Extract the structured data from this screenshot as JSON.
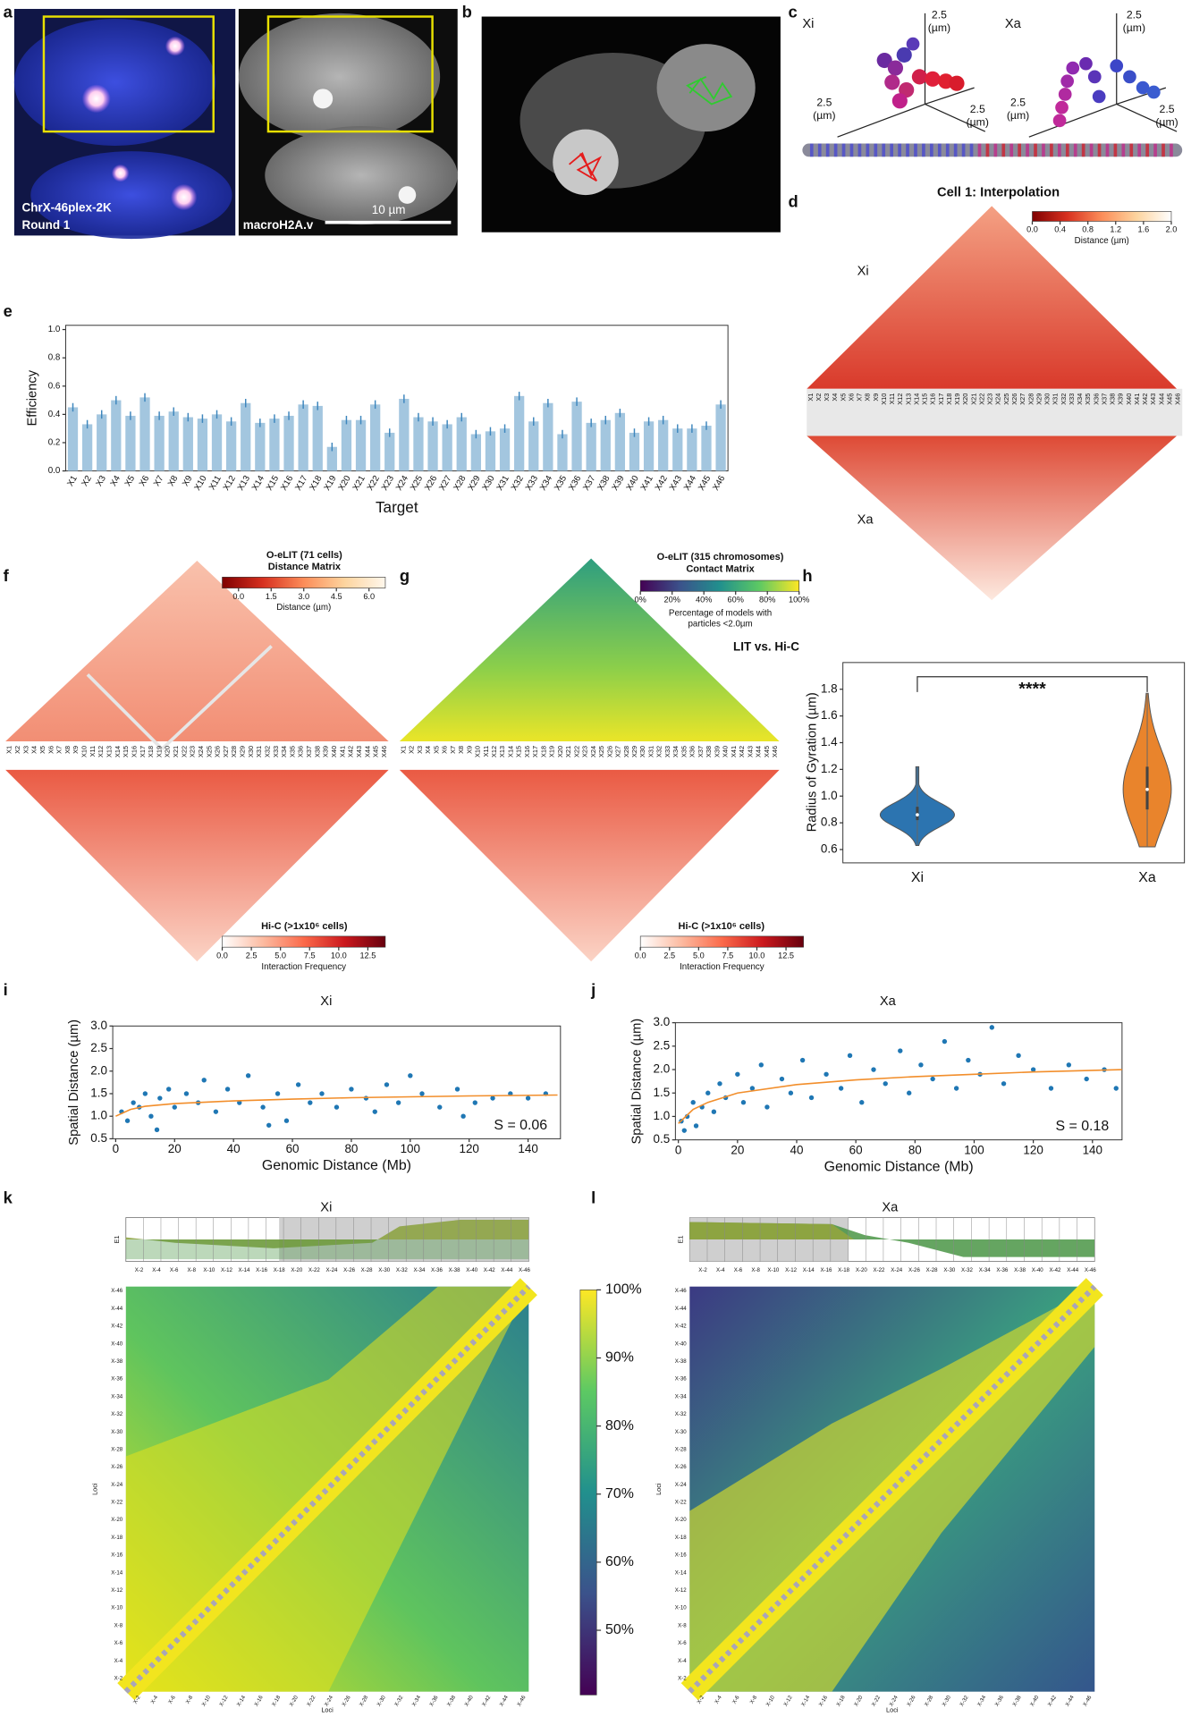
{
  "figure": {
    "a": {
      "letter": "a",
      "stain": "ChrX-46plex-2K",
      "round": "Round 1",
      "channel": "macroH2A.v",
      "scale_bar": "10 µm"
    },
    "b": {
      "letter": "b"
    },
    "c": {
      "letter": "c",
      "xi": "Xi",
      "xa": "Xa",
      "axis_value": "2.5",
      "axis_unit": "(µm)"
    },
    "d": {
      "letter": "d",
      "title": "Cell 1: Interpolation",
      "upper": "Xi",
      "lower": "Xa",
      "colorbar": {
        "lim": [
          0,
          2
        ],
        "ticks": [
          {
            "value": 0,
            "label": "0.0"
          },
          0.4,
          0.8,
          1.2,
          1.6,
          {
            "value": 2,
            "label": "2.0"
          }
        ],
        "colors": [
          "#7f0000",
          "#d7301f",
          "#fc8d59",
          "#fdd49e",
          "#ffffff"
        ],
        "label": "Distance (µm)"
      }
    },
    "e": {
      "letter": "e"
    },
    "f": {
      "letter": "f",
      "title_1": "O-eLIT (71 cells)",
      "title_2": "Distance Matrix",
      "colorbar": {
        "lim": [
          -0.75,
          6.75
        ],
        "ticks": [
          {
            "value": 0,
            "label": "0.0"
          },
          1.5,
          {
            "value": 3,
            "label": "3.0"
          },
          4.5,
          {
            "value": 6,
            "label": "6.0"
          }
        ],
        "colors": [
          "#7f0000",
          "#d7301f",
          "#fc8d59",
          "#fdd49e",
          "#fff7ec"
        ],
        "label": "Distance (µm)"
      }
    },
    "g": {
      "letter": "g",
      "title_1": "O-eLIT (315 chromosomes)",
      "title_2": "Contact Matrix",
      "caption_1": "Percentage of models with",
      "caption_2": "particles <2.0µm",
      "compare": "LIT vs. Hi-C",
      "colorbar": {
        "lim": [
          0,
          100
        ],
        "ticks": [
          {
            "value": 0,
            "label": "0%"
          },
          {
            "value": 20,
            "label": "20%"
          },
          {
            "value": 40,
            "label": "40%"
          },
          {
            "value": 60,
            "label": "60%"
          },
          {
            "value": 80,
            "label": "80%"
          },
          {
            "value": 100,
            "label": "100%"
          }
        ],
        "colors": [
          "#440154",
          "#3b528b",
          "#21908d",
          "#5dc963",
          "#fde725"
        ]
      }
    },
    "hic": {
      "title": "Hi-C (>1x10⁶ cells)",
      "colorbar": {
        "lim": [
          0,
          14
        ],
        "ticks": [
          {
            "value": 0,
            "label": "0.0"
          },
          2.5,
          {
            "value": 5,
            "label": "5.0"
          },
          7.5,
          {
            "value": 10,
            "label": "10.0"
          },
          12.5
        ],
        "colors": [
          "#ffffff",
          "#fcbba1",
          "#fb6a4a",
          "#cb181d",
          "#67000d"
        ],
        "label": "Interaction Frequency"
      }
    },
    "h": {
      "letter": "h"
    },
    "i": {
      "letter": "i"
    },
    "j": {
      "letter": "j"
    },
    "k": {
      "letter": "k",
      "title": "Xi"
    },
    "l": {
      "letter": "l",
      "title": "Xa"
    },
    "heatmap": {
      "track_label": "E1",
      "axis_label": "Loci",
      "loci": [
        "X-2",
        "X-4",
        "X-6",
        "X-8",
        "X-10",
        "X-12",
        "X-14",
        "X-16",
        "X-18",
        "X-20",
        "X-22",
        "X-24",
        "X-26",
        "X-28",
        "X-30",
        "X-32",
        "X-34",
        "X-36",
        "X-38",
        "X-40",
        "X-42",
        "X-44",
        "X-46"
      ],
      "colorbar": {
        "lim": [
          40.5,
          100
        ],
        "ticks": [
          {
            "value": 50,
            "label": "50%"
          },
          {
            "value": 60,
            "label": "60%"
          },
          {
            "value": 70,
            "label": "70%"
          },
          {
            "value": 80,
            "label": "80%"
          },
          {
            "value": 90,
            "label": "90%"
          },
          {
            "value": 100,
            "label": "100%"
          }
        ],
        "colors": [
          "#440154",
          "#3b528b",
          "#21908d",
          "#5dc963",
          "#fde725"
        ]
      }
    }
  },
  "chart_data": [
    {
      "type": "bar",
      "ylabel": "Efficiency",
      "xlabel": "Target",
      "color": "#a3c6df",
      "error_color": "#3d86bd",
      "categories": [
        "X1",
        "X2",
        "X3",
        "X4",
        "X5",
        "X6",
        "X7",
        "X8",
        "X9",
        "X10",
        "X11",
        "X12",
        "X13",
        "X14",
        "X15",
        "X16",
        "X17",
        "X18",
        "X19",
        "X20",
        "X21",
        "X22",
        "X23",
        "X24",
        "X25",
        "X26",
        "X27",
        "X28",
        "X29",
        "X30",
        "X31",
        "X32",
        "X33",
        "X34",
        "X35",
        "X36",
        "X37",
        "X38",
        "X39",
        "X40",
        "X41",
        "X42",
        "X43",
        "X44",
        "X45",
        "X46"
      ],
      "values": [
        0.45,
        0.33,
        0.4,
        0.5,
        0.39,
        0.52,
        0.39,
        0.42,
        0.38,
        0.37,
        0.4,
        0.35,
        0.48,
        0.34,
        0.37,
        0.39,
        0.47,
        0.46,
        0.17,
        0.36,
        0.36,
        0.47,
        0.27,
        0.51,
        0.38,
        0.35,
        0.33,
        0.38,
        0.26,
        0.28,
        0.3,
        0.53,
        0.35,
        0.48,
        0.26,
        0.49,
        0.34,
        0.36,
        0.41,
        0.27,
        0.35,
        0.36,
        0.3,
        0.3,
        0.32,
        0.47
      ],
      "errors": [
        0.03,
        0.03,
        0.03,
        0.03,
        0.03,
        0.03,
        0.03,
        0.03,
        0.03,
        0.03,
        0.03,
        0.03,
        0.03,
        0.03,
        0.03,
        0.03,
        0.03,
        0.03,
        0.03,
        0.03,
        0.03,
        0.03,
        0.03,
        0.03,
        0.03,
        0.03,
        0.03,
        0.03,
        0.03,
        0.03,
        0.03,
        0.03,
        0.03,
        0.03,
        0.03,
        0.03,
        0.03,
        0.03,
        0.03,
        0.03,
        0.03,
        0.03,
        0.03,
        0.03,
        0.03,
        0.03
      ],
      "ylim": [
        0,
        1.03
      ],
      "yticks": [
        {
          "value": 0,
          "label": "0.0"
        },
        0.2,
        0.4,
        0.6,
        0.8,
        {
          "value": 1,
          "label": "1.0"
        }
      ]
    },
    {
      "type": "violin",
      "ylabel": "Radius of Gyration (µm)",
      "annotation": "****",
      "categories": [
        "Xi",
        "Xa"
      ],
      "colors": [
        "#2c74b0",
        "#e9842c"
      ],
      "stats": {
        "min": [
          0.63,
          0.62
        ],
        "q1": [
          0.82,
          0.9
        ],
        "median": [
          0.86,
          1.05
        ],
        "q3": [
          0.92,
          1.22
        ],
        "max": [
          1.22,
          1.77
        ]
      },
      "ylim": [
        0.5,
        2.0
      ],
      "yticks": [
        0.6,
        0.8,
        {
          "value": 1,
          "label": "1.0"
        },
        1.2,
        1.4,
        1.6,
        1.8
      ]
    },
    {
      "type": "scatter",
      "title": "Xi",
      "xlabel": "Genomic Distance (Mb)",
      "ylabel": "Spatial Distance (µm)",
      "annotation": "S = 0.06",
      "color": "#1f77b4",
      "x": [
        2,
        4,
        6,
        8,
        10,
        12,
        15,
        18,
        20,
        24,
        28,
        30,
        34,
        38,
        42,
        45,
        50,
        55,
        58,
        62,
        66,
        70,
        75,
        80,
        85,
        88,
        92,
        96,
        100,
        104,
        110,
        116,
        122,
        128,
        134,
        140,
        146,
        14,
        52,
        118
      ],
      "y": [
        1.1,
        0.9,
        1.3,
        1.2,
        1.5,
        1.0,
        1.4,
        1.6,
        1.2,
        1.5,
        1.3,
        1.8,
        1.1,
        1.6,
        1.3,
        1.9,
        1.2,
        1.5,
        0.9,
        1.7,
        1.3,
        1.5,
        1.2,
        1.6,
        1.4,
        1.1,
        1.7,
        1.3,
        1.9,
        1.5,
        1.2,
        1.6,
        1.3,
        1.4,
        1.5,
        1.4,
        1.5,
        0.7,
        0.8,
        1.0
      ],
      "fit": {
        "color": "#f28e2b",
        "x": [
          0,
          5,
          10,
          20,
          40,
          60,
          80,
          100,
          120,
          150
        ],
        "y": [
          1.0,
          1.15,
          1.22,
          1.28,
          1.34,
          1.38,
          1.41,
          1.43,
          1.45,
          1.47
        ]
      },
      "xlim": [
        -1,
        151
      ],
      "ylim": [
        0.5,
        3.0
      ],
      "xticks": [
        0,
        20,
        40,
        60,
        80,
        100,
        120,
        140
      ],
      "yticks": [
        0.5,
        {
          "value": 1,
          "label": "1.0"
        },
        1.5,
        {
          "value": 2,
          "label": "2.0"
        },
        2.5,
        {
          "value": 3,
          "label": "3.0"
        }
      ]
    },
    {
      "type": "scatter",
      "title": "Xa",
      "xlabel": "Genomic Distance (Mb)",
      "ylabel": "Spatial Distance (µm)",
      "annotation": "S = 0.18",
      "color": "#1f77b4",
      "x": [
        1,
        2,
        3,
        5,
        6,
        8,
        10,
        12,
        14,
        16,
        20,
        22,
        25,
        28,
        30,
        35,
        38,
        42,
        45,
        50,
        55,
        58,
        62,
        66,
        70,
        75,
        78,
        82,
        86,
        90,
        94,
        98,
        102,
        106,
        110,
        115,
        120,
        126,
        132,
        138,
        144,
        148
      ],
      "y": [
        0.9,
        0.7,
        1.0,
        1.3,
        0.8,
        1.2,
        1.5,
        1.1,
        1.7,
        1.4,
        1.9,
        1.3,
        1.6,
        2.1,
        1.2,
        1.8,
        1.5,
        2.2,
        1.4,
        1.9,
        1.6,
        2.3,
        1.3,
        2.0,
        1.7,
        2.4,
        1.5,
        2.1,
        1.8,
        2.6,
        1.6,
        2.2,
        1.9,
        2.9,
        1.7,
        2.3,
        2.0,
        1.6,
        2.1,
        1.8,
        2.0,
        1.6
      ],
      "fit": {
        "color": "#f28e2b",
        "x": [
          0,
          5,
          10,
          20,
          40,
          60,
          80,
          100,
          120,
          150
        ],
        "y": [
          0.85,
          1.15,
          1.3,
          1.5,
          1.68,
          1.78,
          1.85,
          1.9,
          1.95,
          2.0
        ]
      },
      "xlim": [
        -1,
        150
      ],
      "ylim": [
        0.5,
        3.0
      ],
      "xticks": [
        0,
        20,
        40,
        60,
        80,
        100,
        120,
        140
      ],
      "yticks": [
        0.5,
        {
          "value": 1,
          "label": "1.0"
        },
        1.5,
        {
          "value": 2,
          "label": "2.0"
        },
        2.5,
        {
          "value": 3,
          "label": "3.0"
        }
      ]
    }
  ]
}
